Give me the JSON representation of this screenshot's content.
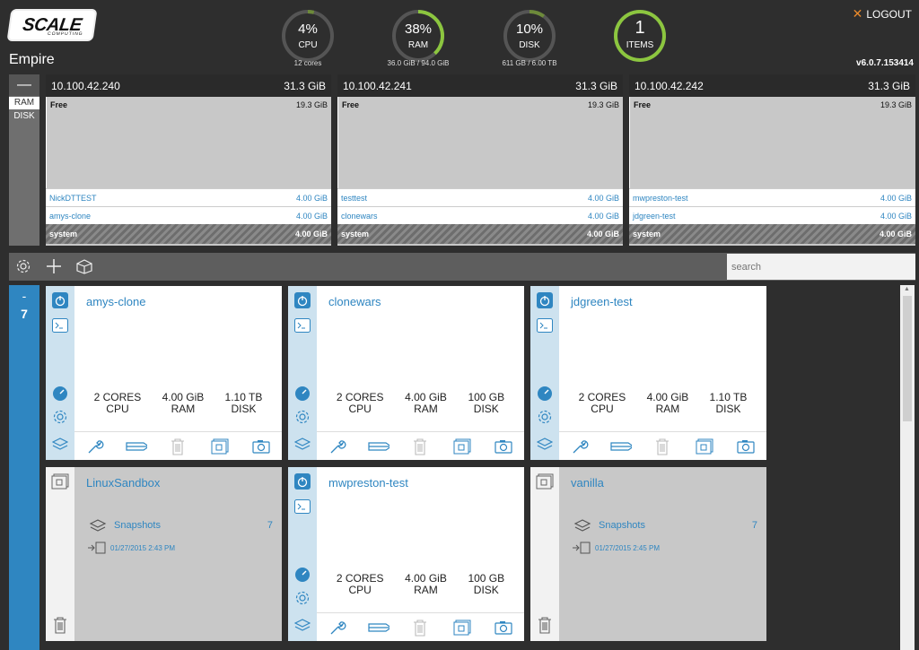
{
  "header": {
    "logo_text": "SCALE",
    "logo_sub": "COMPUTING",
    "cluster_name": "Empire",
    "logout_label": "LOGOUT",
    "version": "v6.0.7.153414"
  },
  "gauges": [
    {
      "value": "4%",
      "label": "CPU",
      "sub": "12 cores",
      "fraction": 0.04,
      "color": "#6d8a3a"
    },
    {
      "value": "38%",
      "label": "RAM",
      "sub": "36.0 GiB / 94.0 GiB",
      "fraction": 0.38,
      "color": "#8cc63f"
    },
    {
      "value": "10%",
      "label": "DISK",
      "sub": "611 GB / 6.00 TB",
      "fraction": 0.1,
      "color": "#6d8a3a"
    },
    {
      "value": "1",
      "label": "ITEMS",
      "sub": "",
      "fraction": 1.0,
      "color": "#8cc63f"
    }
  ],
  "node_toggle": {
    "minus": "—",
    "ram": "RAM",
    "disk": "DISK"
  },
  "nodes": [
    {
      "ip": "10.100.42.240",
      "total": "31.3 GiB",
      "free_label": "Free",
      "free_value": "19.3 GiB",
      "vms": [
        {
          "name": "NickDTTEST",
          "ram": "4.00 GiB"
        },
        {
          "name": "amys-clone",
          "ram": "4.00 GiB"
        }
      ],
      "system_label": "system",
      "system_value": "4.00 GiB"
    },
    {
      "ip": "10.100.42.241",
      "total": "31.3 GiB",
      "free_label": "Free",
      "free_value": "19.3 GiB",
      "vms": [
        {
          "name": "testtest",
          "ram": "4.00 GiB"
        },
        {
          "name": "clonewars",
          "ram": "4.00 GiB"
        }
      ],
      "system_label": "system",
      "system_value": "4.00 GiB"
    },
    {
      "ip": "10.100.42.242",
      "total": "31.3 GiB",
      "free_label": "Free",
      "free_value": "19.3 GiB",
      "vms": [
        {
          "name": "mwpreston-test",
          "ram": "4.00 GiB"
        },
        {
          "name": "jdgreen-test",
          "ram": "4.00 GiB"
        }
      ],
      "system_label": "system",
      "system_value": "4.00 GiB"
    }
  ],
  "toolbar": {
    "search_placeholder": "search"
  },
  "vm_list": {
    "collapse": "-",
    "count": "7"
  },
  "cards": [
    {
      "name": "amys-clone",
      "cores": "2 CORES",
      "cpu": "CPU",
      "ram_val": "4.00 GiB",
      "ram": "RAM",
      "disk_val": "1.10 TB",
      "disk": "DISK"
    },
    {
      "name": "clonewars",
      "cores": "2 CORES",
      "cpu": "CPU",
      "ram_val": "4.00 GiB",
      "ram": "RAM",
      "disk_val": "100 GB",
      "disk": "DISK"
    },
    {
      "name": "jdgreen-test",
      "cores": "2 CORES",
      "cpu": "CPU",
      "ram_val": "4.00 GiB",
      "ram": "RAM",
      "disk_val": "1.10 TB",
      "disk": "DISK"
    },
    {
      "name": "LinuxSandbox",
      "snapshots_label": "Snapshots",
      "snapshots_count": "7",
      "date": "01/27/2015 2:43 PM"
    },
    {
      "name": "mwpreston-test",
      "cores": "2 CORES",
      "cpu": "CPU",
      "ram_val": "4.00 GiB",
      "ram": "RAM",
      "disk_val": "100 GB",
      "disk": "DISK"
    },
    {
      "name": "vanilla",
      "snapshots_label": "Snapshots",
      "snapshots_count": "7",
      "date": "01/27/2015 2:45 PM"
    }
  ],
  "colors": {
    "accent": "#2f86c1",
    "gauge_green": "#8cc63f",
    "logout_x": "#e8892b"
  }
}
